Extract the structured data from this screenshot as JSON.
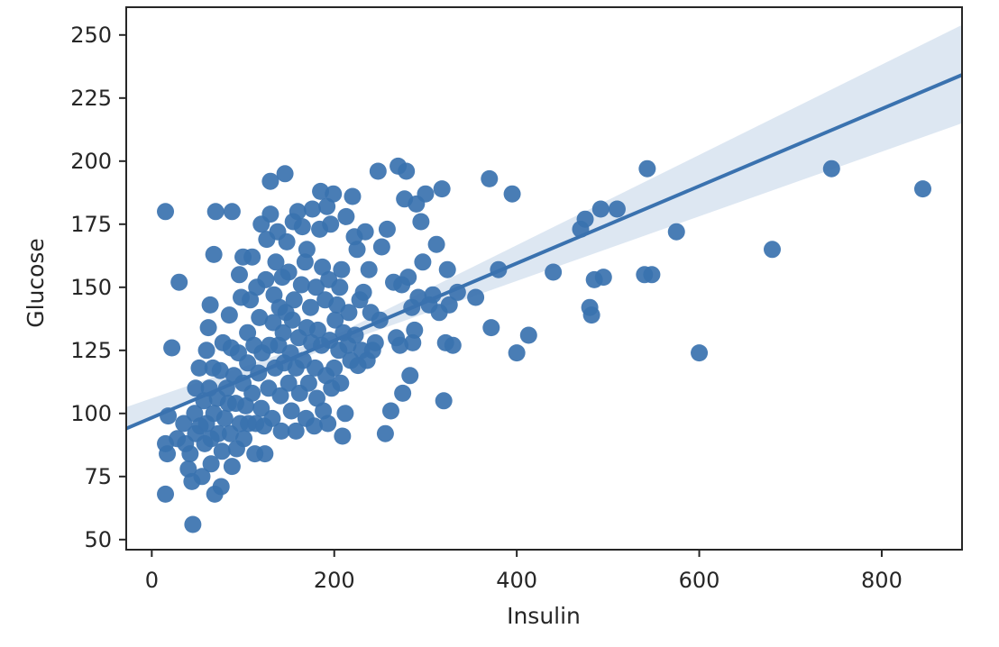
{
  "chart_data": {
    "type": "scatter",
    "title": "",
    "xlabel": "Insulin",
    "ylabel": "Glucose",
    "xlim": [
      -28,
      888
    ],
    "ylim": [
      46,
      261
    ],
    "xticks": [
      0,
      200,
      400,
      600,
      800
    ],
    "yticks": [
      50,
      75,
      100,
      125,
      150,
      175,
      200,
      225,
      250
    ],
    "grid": false,
    "colors": {
      "points": "#3a72af",
      "line": "#3a72af",
      "band": "#dbe6f1",
      "axes": "#262626"
    },
    "regression": {
      "intercept": 98.3,
      "slope": 0.153,
      "ci_low_end": 215,
      "ci_high_end": 254,
      "ci_low_start": 94.5,
      "ci_high_start": 102.5
    },
    "points": [
      [
        15,
        180
      ],
      [
        30,
        152
      ],
      [
        22,
        126
      ],
      [
        15,
        88
      ],
      [
        18,
        99
      ],
      [
        17,
        84
      ],
      [
        15,
        68
      ],
      [
        45,
        56
      ],
      [
        28,
        90
      ],
      [
        35,
        96
      ],
      [
        37,
        88
      ],
      [
        40,
        78
      ],
      [
        42,
        84
      ],
      [
        44,
        73
      ],
      [
        47,
        100
      ],
      [
        48,
        110
      ],
      [
        48,
        92
      ],
      [
        52,
        118
      ],
      [
        53,
        95
      ],
      [
        55,
        75
      ],
      [
        57,
        105
      ],
      [
        58,
        88
      ],
      [
        60,
        125
      ],
      [
        60,
        96
      ],
      [
        62,
        134
      ],
      [
        63,
        110
      ],
      [
        64,
        143
      ],
      [
        65,
        90
      ],
      [
        65,
        80
      ],
      [
        67,
        118
      ],
      [
        68,
        163
      ],
      [
        68,
        100
      ],
      [
        69,
        68
      ],
      [
        70,
        180
      ],
      [
        72,
        106
      ],
      [
        73,
        92
      ],
      [
        75,
        117
      ],
      [
        76,
        71
      ],
      [
        77,
        85
      ],
      [
        78,
        128
      ],
      [
        80,
        98
      ],
      [
        82,
        110
      ],
      [
        84,
        104
      ],
      [
        85,
        139
      ],
      [
        86,
        92
      ],
      [
        87,
        126
      ],
      [
        88,
        180
      ],
      [
        88,
        79
      ],
      [
        90,
        115
      ],
      [
        92,
        104
      ],
      [
        93,
        86
      ],
      [
        95,
        124
      ],
      [
        96,
        155
      ],
      [
        97,
        96
      ],
      [
        98,
        146
      ],
      [
        100,
        112
      ],
      [
        100,
        162
      ],
      [
        101,
        90
      ],
      [
        103,
        103
      ],
      [
        105,
        132
      ],
      [
        105,
        120
      ],
      [
        106,
        96
      ],
      [
        108,
        145
      ],
      [
        110,
        108
      ],
      [
        110,
        162
      ],
      [
        112,
        127
      ],
      [
        113,
        84
      ],
      [
        114,
        96
      ],
      [
        115,
        150
      ],
      [
        117,
        116
      ],
      [
        118,
        138
      ],
      [
        120,
        102
      ],
      [
        120,
        175
      ],
      [
        121,
        124
      ],
      [
        123,
        95
      ],
      [
        124,
        84
      ],
      [
        125,
        153
      ],
      [
        126,
        169
      ],
      [
        128,
        110
      ],
      [
        129,
        127
      ],
      [
        130,
        179
      ],
      [
        130,
        192
      ],
      [
        132,
        98
      ],
      [
        133,
        136
      ],
      [
        134,
        147
      ],
      [
        135,
        118
      ],
      [
        136,
        160
      ],
      [
        138,
        172
      ],
      [
        139,
        127
      ],
      [
        140,
        142
      ],
      [
        141,
        107
      ],
      [
        142,
        93
      ],
      [
        143,
        154
      ],
      [
        144,
        132
      ],
      [
        145,
        120
      ],
      [
        146,
        195
      ],
      [
        147,
        140
      ],
      [
        148,
        168
      ],
      [
        150,
        112
      ],
      [
        150,
        156
      ],
      [
        152,
        124
      ],
      [
        153,
        101
      ],
      [
        154,
        137
      ],
      [
        155,
        176
      ],
      [
        156,
        145
      ],
      [
        158,
        93
      ],
      [
        158,
        118
      ],
      [
        160,
        180
      ],
      [
        161,
        130
      ],
      [
        162,
        108
      ],
      [
        164,
        151
      ],
      [
        165,
        174
      ],
      [
        166,
        121
      ],
      [
        168,
        160
      ],
      [
        169,
        98
      ],
      [
        170,
        134
      ],
      [
        170,
        165
      ],
      [
        172,
        112
      ],
      [
        174,
        142
      ],
      [
        175,
        128
      ],
      [
        176,
        181
      ],
      [
        178,
        95
      ],
      [
        179,
        118
      ],
      [
        180,
        150
      ],
      [
        181,
        106
      ],
      [
        182,
        133
      ],
      [
        184,
        173
      ],
      [
        185,
        188
      ],
      [
        186,
        127
      ],
      [
        187,
        158
      ],
      [
        188,
        101
      ],
      [
        190,
        145
      ],
      [
        191,
        115
      ],
      [
        192,
        182
      ],
      [
        193,
        96
      ],
      [
        194,
        153
      ],
      [
        195,
        129
      ],
      [
        196,
        175
      ],
      [
        197,
        110
      ],
      [
        199,
        187
      ],
      [
        200,
        118
      ],
      [
        201,
        137
      ],
      [
        203,
        143
      ],
      [
        205,
        125
      ],
      [
        206,
        150
      ],
      [
        207,
        112
      ],
      [
        208,
        157
      ],
      [
        209,
        91
      ],
      [
        210,
        132
      ],
      [
        212,
        100
      ],
      [
        213,
        178
      ],
      [
        215,
        127
      ],
      [
        216,
        140
      ],
      [
        218,
        121
      ],
      [
        220,
        186
      ],
      [
        222,
        170
      ],
      [
        223,
        131
      ],
      [
        225,
        165
      ],
      [
        226,
        119
      ],
      [
        228,
        145
      ],
      [
        230,
        125
      ],
      [
        232,
        148
      ],
      [
        234,
        172
      ],
      [
        236,
        121
      ],
      [
        238,
        157
      ],
      [
        240,
        140
      ],
      [
        242,
        125
      ],
      [
        245,
        128
      ],
      [
        248,
        196
      ],
      [
        250,
        137
      ],
      [
        252,
        166
      ],
      [
        256,
        92
      ],
      [
        258,
        173
      ],
      [
        262,
        101
      ],
      [
        265,
        152
      ],
      [
        268,
        130
      ],
      [
        270,
        198
      ],
      [
        272,
        127
      ],
      [
        274,
        151
      ],
      [
        275,
        108
      ],
      [
        277,
        185
      ],
      [
        279,
        196
      ],
      [
        281,
        154
      ],
      [
        283,
        115
      ],
      [
        285,
        142
      ],
      [
        286,
        128
      ],
      [
        288,
        133
      ],
      [
        290,
        183
      ],
      [
        292,
        146
      ],
      [
        295,
        176
      ],
      [
        297,
        160
      ],
      [
        300,
        187
      ],
      [
        304,
        143
      ],
      [
        308,
        147
      ],
      [
        312,
        167
      ],
      [
        315,
        140
      ],
      [
        318,
        189
      ],
      [
        320,
        105
      ],
      [
        322,
        128
      ],
      [
        324,
        157
      ],
      [
        326,
        143
      ],
      [
        330,
        127
      ],
      [
        335,
        148
      ],
      [
        355,
        146
      ],
      [
        370,
        193
      ],
      [
        372,
        134
      ],
      [
        380,
        157
      ],
      [
        395,
        187
      ],
      [
        400,
        124
      ],
      [
        413,
        131
      ],
      [
        440,
        156
      ],
      [
        470,
        173
      ],
      [
        475,
        177
      ],
      [
        480,
        142
      ],
      [
        482,
        139
      ],
      [
        485,
        153
      ],
      [
        492,
        181
      ],
      [
        495,
        154
      ],
      [
        510,
        181
      ],
      [
        540,
        155
      ],
      [
        543,
        197
      ],
      [
        548,
        155
      ],
      [
        575,
        172
      ],
      [
        600,
        124
      ],
      [
        680,
        165
      ],
      [
        745,
        197
      ],
      [
        845,
        189
      ]
    ]
  }
}
